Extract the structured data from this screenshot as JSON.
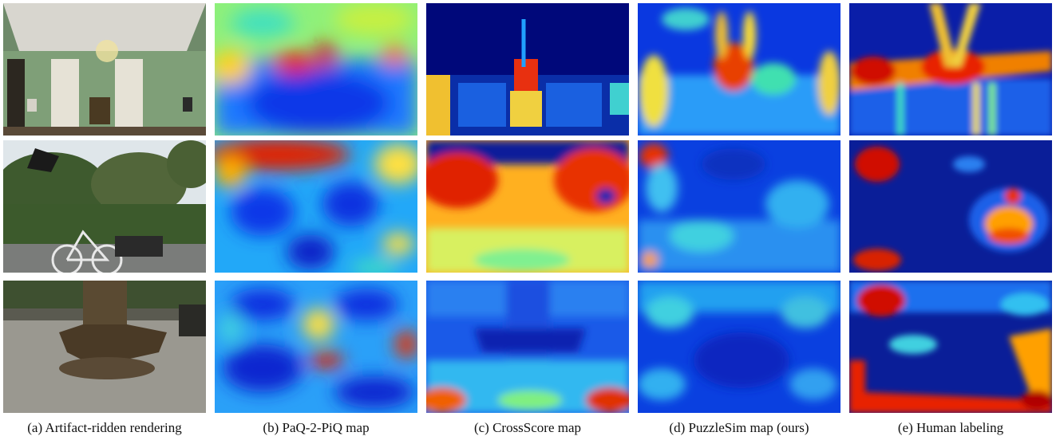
{
  "columns": [
    {
      "id": "rendering",
      "caption": "(a) Artifact-ridden rendering"
    },
    {
      "id": "paq2piq",
      "caption": "(b) PaQ-2-PiQ map"
    },
    {
      "id": "crossscore",
      "caption": "(c) CrossScore map"
    },
    {
      "id": "puzzlesim",
      "caption": "(d) PuzzleSim map (ours)"
    },
    {
      "id": "human",
      "caption": "(e) Human labeling"
    }
  ],
  "rows": [
    {
      "id": "interior-room"
    },
    {
      "id": "garden-bicycle"
    },
    {
      "id": "tree-bench"
    }
  ],
  "colors": {
    "heatmap_low": "#00007f",
    "heatmap_mid_low": "#0a4cff",
    "heatmap_mid": "#28d8f0",
    "heatmap_mid_high": "#ffe800",
    "heatmap_high": "#e81000"
  }
}
